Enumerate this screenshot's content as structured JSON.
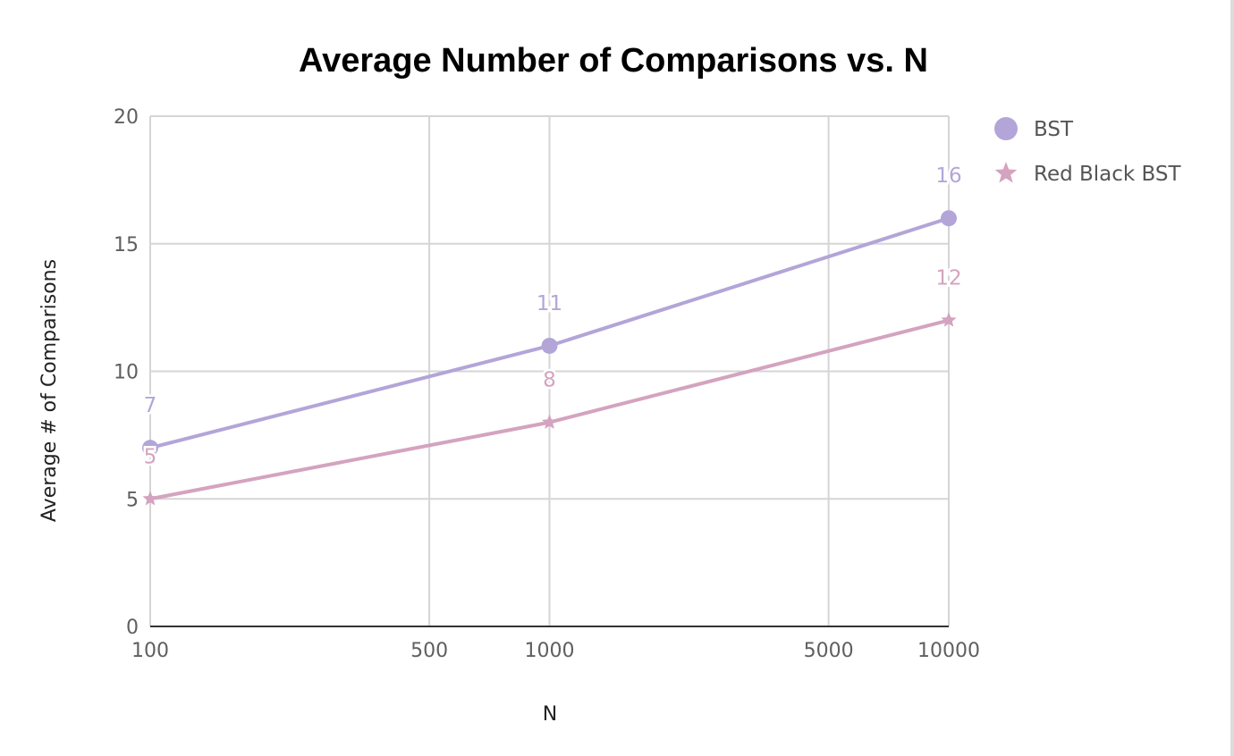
{
  "chart_data": {
    "type": "line",
    "title": "Average Number of Comparisons vs. N",
    "xlabel": "N",
    "ylabel": "Average # of Comparisons",
    "x_scale": "log",
    "x_ticks": [
      100,
      500,
      1000,
      5000,
      10000
    ],
    "x_tick_labels": [
      "100",
      "500",
      "1000",
      "5000",
      "10000"
    ],
    "y_ticks": [
      0,
      5,
      10,
      15,
      20
    ],
    "y_tick_labels": [
      "0",
      "5",
      "10",
      "15",
      "20"
    ],
    "xlim": [
      100,
      10000
    ],
    "ylim": [
      0,
      20
    ],
    "grid": true,
    "legend_position": "right",
    "x": [
      100,
      1000,
      10000
    ],
    "series": [
      {
        "name": "BST",
        "values": [
          7,
          11,
          16
        ],
        "labels": [
          "7",
          "11",
          "16"
        ],
        "color": "#b3a5d8",
        "marker": "circle"
      },
      {
        "name": "Red Black BST",
        "values": [
          5,
          8,
          12
        ],
        "labels": [
          "5",
          "8",
          "12"
        ],
        "color": "#d4a3bf",
        "marker": "star"
      }
    ]
  }
}
